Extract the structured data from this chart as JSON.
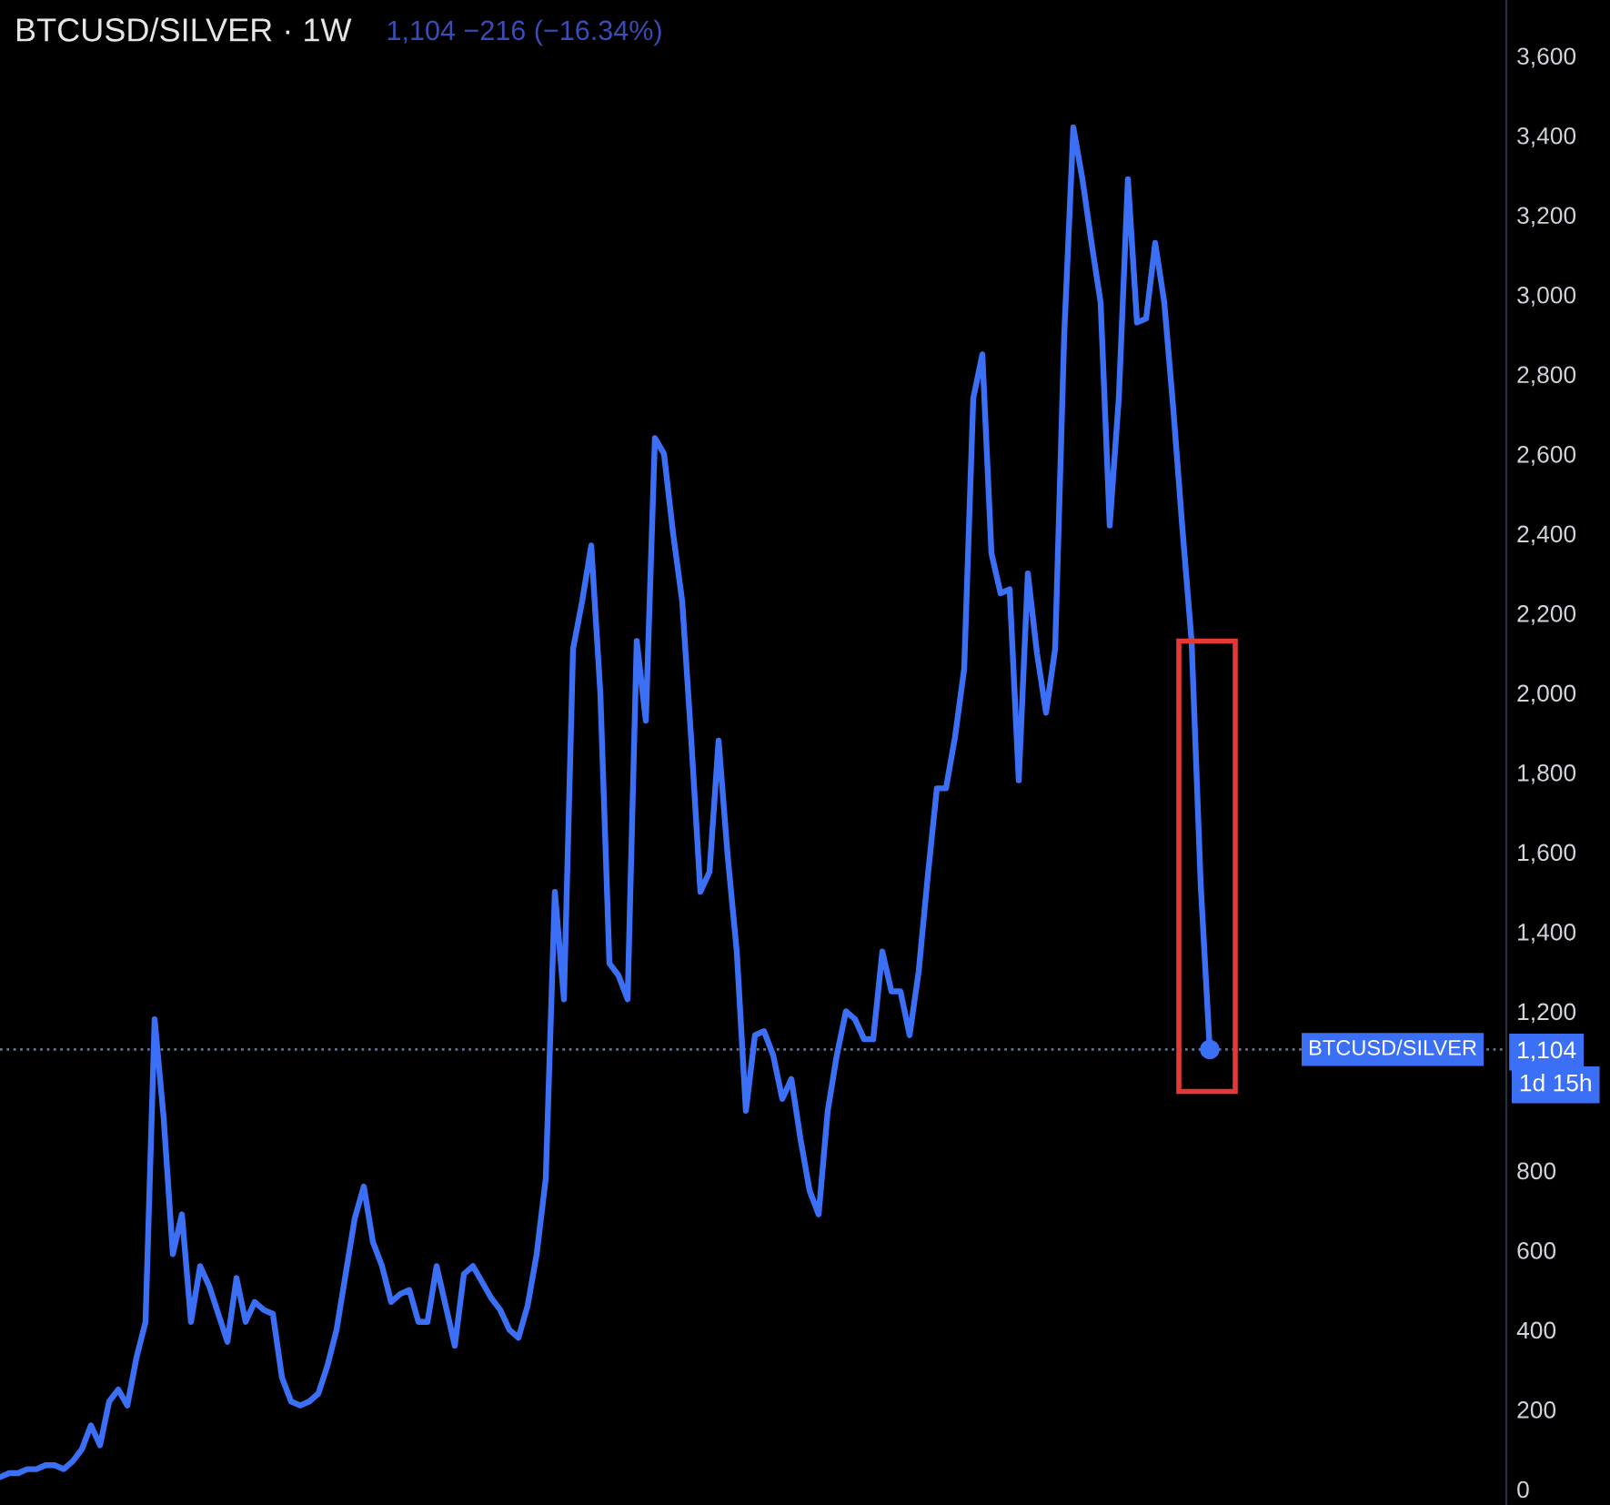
{
  "chart_data": {
    "type": "line",
    "title": "BTCUSD/SILVER · 1W",
    "subtitle": "1,104 −216 (−16.34%)",
    "categories": [
      null,
      null,
      null,
      null,
      null,
      null,
      null,
      null,
      null,
      null,
      null,
      null,
      null,
      null,
      null,
      null,
      null,
      null,
      null,
      null,
      null,
      null,
      null,
      null,
      null,
      null,
      null,
      null,
      null,
      null,
      null,
      null,
      null,
      null,
      null,
      null,
      null,
      null,
      null,
      null,
      null,
      null,
      null,
      null,
      null,
      null,
      null,
      null,
      null,
      null,
      null,
      null,
      null,
      null,
      null,
      null,
      null,
      null,
      null,
      null,
      null,
      null,
      null,
      null,
      null,
      null,
      null,
      null,
      null,
      null,
      null,
      null,
      null,
      null,
      null,
      null,
      null,
      null,
      null,
      null,
      null,
      null,
      null,
      null,
      null,
      null,
      null,
      null,
      null,
      null,
      null,
      null,
      null,
      null,
      null,
      null,
      null,
      null,
      null,
      null,
      null,
      null,
      null,
      null,
      null,
      null,
      null,
      null,
      null,
      null,
      null,
      null,
      null,
      null,
      null,
      null,
      null,
      null,
      null,
      null,
      null,
      null,
      null,
      null,
      null,
      null,
      null,
      null,
      null,
      null,
      null,
      null,
      null,
      null
    ],
    "series": [
      {
        "color": "#3b6ff5",
        "values": [
          30,
          40,
          40,
          50,
          50,
          60,
          60,
          50,
          70,
          100,
          160,
          110,
          220,
          250,
          210,
          330,
          420,
          1180,
          930,
          590,
          690,
          420,
          560,
          510,
          440,
          370,
          530,
          420,
          470,
          450,
          440,
          280,
          220,
          210,
          220,
          240,
          310,
          400,
          540,
          680,
          760,
          620,
          560,
          470,
          490,
          500,
          420,
          420,
          560,
          460,
          360,
          540,
          560,
          520,
          480,
          450,
          400,
          380,
          460,
          590,
          780,
          1500,
          1230,
          2110,
          2230,
          2370,
          2000,
          1320,
          1290,
          1230,
          2130,
          1930,
          2640,
          2600,
          2400,
          2230,
          1880,
          1500,
          1550,
          1880,
          1590,
          1350,
          950,
          1140,
          1150,
          1090,
          980,
          1030,
          880,
          750,
          690,
          950,
          1090,
          1200,
          1180,
          1130,
          1130,
          1350,
          1250,
          1250,
          1140,
          1300,
          1540,
          1760,
          1760,
          1890,
          2060,
          2740,
          2850,
          2350,
          2250,
          2260,
          1780,
          2300,
          2100,
          1950,
          2110,
          2900,
          3420,
          3290,
          3130,
          2980,
          2420,
          2740,
          3290,
          2930,
          2940,
          3130,
          2980,
          2710,
          2410,
          2130,
          1520,
          1104
        ]
      },
      {
        "type": "scatter",
        "color": "#3b6ff5",
        "marker": "circle",
        "values": [
          null,
          null,
          null,
          null,
          null,
          null,
          null,
          null,
          null,
          null,
          null,
          null,
          null,
          null,
          null,
          null,
          null,
          null,
          null,
          null,
          null,
          null,
          null,
          null,
          null,
          null,
          null,
          null,
          null,
          null,
          null,
          null,
          null,
          null,
          null,
          null,
          null,
          null,
          null,
          null,
          null,
          null,
          null,
          null,
          null,
          null,
          null,
          null,
          null,
          null,
          null,
          null,
          null,
          null,
          null,
          null,
          null,
          null,
          null,
          null,
          null,
          null,
          null,
          null,
          null,
          null,
          null,
          null,
          null,
          null,
          null,
          null,
          null,
          null,
          null,
          null,
          null,
          null,
          null,
          null,
          null,
          null,
          null,
          null,
          null,
          null,
          null,
          null,
          null,
          null,
          null,
          null,
          null,
          null,
          null,
          null,
          null,
          null,
          null,
          null,
          null,
          null,
          null,
          null,
          null,
          null,
          null,
          null,
          null,
          null,
          null,
          null,
          null,
          null,
          null,
          null,
          null,
          null,
          null,
          null,
          null,
          null,
          null,
          null,
          null,
          null,
          null,
          null,
          null,
          null,
          null,
          null,
          null,
          1104
        ]
      }
    ],
    "ylim": [
      -40,
      3740
    ],
    "yticks": [
      0,
      200,
      400,
      600,
      800,
      {
        "value": 1104,
        "label": "1,104"
      },
      {
        "value": 1200,
        "label": "1,200"
      },
      {
        "value": 1400,
        "label": "1,400"
      },
      {
        "value": 1600,
        "label": "1,600"
      },
      {
        "value": 1800,
        "label": "1,800"
      },
      {
        "value": 2000,
        "label": "2,000"
      },
      {
        "value": 2200,
        "label": "2,200"
      },
      {
        "value": 2400,
        "label": "2,400"
      },
      {
        "value": 2600,
        "label": "2,600"
      },
      {
        "value": 2800,
        "label": "2,800"
      },
      {
        "value": 3000,
        "label": "3,000"
      },
      {
        "value": 3200,
        "label": "3,200"
      },
      {
        "value": 3400,
        "label": "3,400"
      },
      {
        "value": 3600,
        "label": "3,600"
      }
    ],
    "ref_lines": [
      {
        "axis": "y",
        "value": 1104,
        "label": "BTCUSD/SILVER",
        "color": "#66708a",
        "line_style": "dotted"
      }
    ],
    "annotations": [
      "1d 15h"
    ],
    "tick_labels": "y"
  }
}
